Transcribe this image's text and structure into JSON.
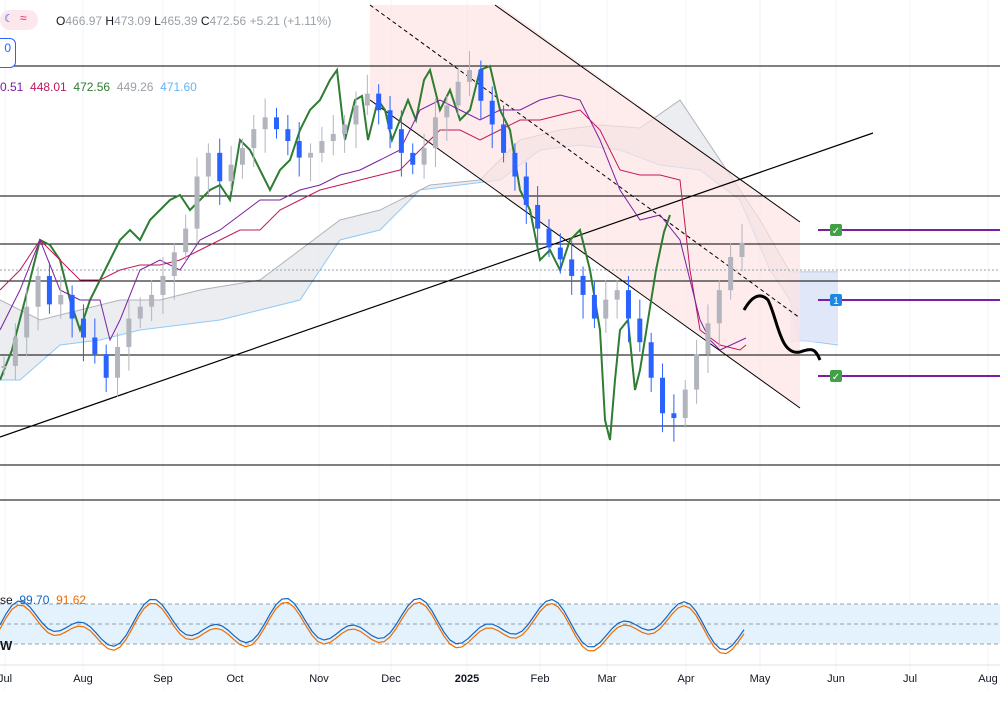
{
  "header": {
    "open_label": "O",
    "open": "466.97",
    "high_label": "H",
    "high": "473.09",
    "low_label": "L",
    "low": "465.39",
    "close_label": "C",
    "close": "472.56",
    "change": "+5.21 (+1.11%)",
    "interval_badge": "0",
    "indicator_values": [
      "0.51",
      "448.01",
      "472.56",
      "449.26",
      "471.60"
    ]
  },
  "stoch": {
    "label_fragment": "se",
    "k": "99.70",
    "d": "91.62",
    "extra_label": "W"
  },
  "colors": {
    "candle_up": "#b2b5be",
    "candle_down": "#2962ff",
    "chikou": "#2e7d32",
    "kijun": "#c2185b",
    "tenkan": "#7b1fa2",
    "cloud_fill": "#e6e9ee",
    "span_b": "#90caf9",
    "channel_fill": "#fde3e3",
    "target": "#7b1fa2",
    "stoch_k": "#1565c0",
    "stoch_d": "#ef6c00",
    "stoch_band": "#e3f2fd"
  },
  "icons": {
    "header_glyph": "approx-icon",
    "target_markers": [
      "check-icon",
      "flag-1-icon",
      "check-icon"
    ]
  },
  "chart_data": {
    "type": "candlestick",
    "x_ticks": [
      "Jul",
      "Aug",
      "Sep",
      "Oct",
      "Nov",
      "Dec",
      "2025",
      "Feb",
      "Mar",
      "Apr",
      "May",
      "Jun",
      "Jul",
      "Aug"
    ],
    "ohlc_last": {
      "open": 466.97,
      "high": 473.09,
      "low": 465.39,
      "close": 472.56
    },
    "series": [
      {
        "name": "Price",
        "values": [
          420,
          432,
          445,
          458,
          446,
          450,
          440,
          432,
          425,
          415,
          428,
          440,
          445,
          450,
          458,
          468,
          478,
          500,
          510,
          498,
          505,
          512,
          520,
          525,
          520,
          515,
          508,
          510,
          515,
          518,
          522,
          530,
          535,
          528,
          520,
          510,
          505,
          512,
          525,
          530,
          540,
          545,
          532,
          522,
          510,
          500,
          488,
          478,
          470,
          465,
          458,
          450,
          440,
          448,
          452,
          440,
          430,
          415,
          400,
          398,
          410,
          425,
          438,
          452,
          466,
          472
        ]
      }
    ],
    "indicators": {
      "ichimoku_values": [
        "0.51",
        "448.01",
        "472.56",
        "449.26",
        "471.60"
      ],
      "stochastic": {
        "k": 99.7,
        "d": 91.62,
        "levels": [
          80,
          50,
          20
        ]
      }
    },
    "targets": [
      "check",
      "1",
      "check"
    ],
    "grid": true
  }
}
